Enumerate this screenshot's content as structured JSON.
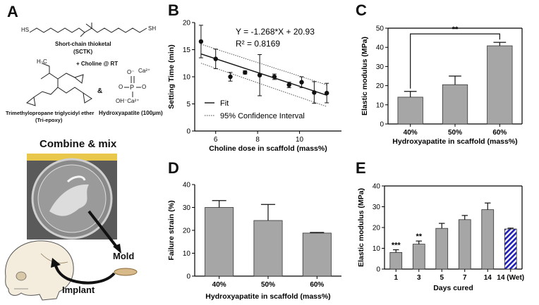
{
  "panel_a": {
    "letter": "A",
    "sctk_formula_left": "HS",
    "sctk_formula_right": "SH",
    "sctk_name": "Short-chain thioketal",
    "sctk_abbr": "(SCTK)",
    "choline_label": "+ Choline @ RT",
    "triepoxy_ch3": "H₃C",
    "triepoxy_name": "Trimethylopropane triglycidyl ether",
    "triepoxy_abbr": "(Tri-epoxy)",
    "amp": "&",
    "ha_ca_top": "Ca²⁺",
    "ha_o_left": "O⁻",
    "ha_o_right": "O",
    "ha_p": "P",
    "ha_bottom": "OH⁻Ca²⁺",
    "ha_o_bottom": "O⁻",
    "ha_name": "Hydroxyapatite (100μm)",
    "combine_label": "Combine & mix",
    "mold_label": "Mold",
    "implant_label": "Implant"
  },
  "chart_data": [
    {
      "panel": "B",
      "type": "scatter",
      "xlabel": "Choline dose in scaffold (mass%)",
      "ylabel": "Setting Time (min)",
      "xlim": [
        5,
        12
      ],
      "ylim": [
        0,
        20
      ],
      "xticks": [
        "6",
        "8",
        "10"
      ],
      "yticks": [
        "0",
        "5",
        "10",
        "15",
        "20"
      ],
      "equation": "Y = -1.268*X + 20.93",
      "r2": "R² = 0.8169",
      "legend": [
        "Fit",
        "95% Confidence Interval"
      ],
      "points": [
        {
          "x": 5.3,
          "y": 16.5,
          "err": 3.0
        },
        {
          "x": 6.0,
          "y": 13.3,
          "err": 1.8
        },
        {
          "x": 6.7,
          "y": 10.0,
          "err": 0.8
        },
        {
          "x": 7.4,
          "y": 10.8,
          "err": 0.3
        },
        {
          "x": 8.1,
          "y": 10.3,
          "err": 3.8
        },
        {
          "x": 8.8,
          "y": 10.0,
          "err": 0.5
        },
        {
          "x": 9.5,
          "y": 8.5,
          "err": 0.5
        },
        {
          "x": 10.1,
          "y": 9.0,
          "err": 1.0
        },
        {
          "x": 10.7,
          "y": 7.1,
          "err": 2.0
        },
        {
          "x": 11.3,
          "y": 7.0,
          "err": 1.8
        }
      ],
      "fit": {
        "slope": -1.268,
        "intercept": 20.93
      },
      "ci_band": {
        "upper_start": 16.0,
        "upper_end": 8.5,
        "lower_start": 12.5,
        "lower_end": 4.5
      }
    },
    {
      "panel": "C",
      "type": "bar",
      "xlabel": "Hydroxyapatite in scaffold (mass%)",
      "ylabel": "Elastic modulus (MPa)",
      "ylim": [
        0,
        50
      ],
      "yticks": [
        "0",
        "10",
        "20",
        "30",
        "40",
        "50"
      ],
      "categories": [
        "40%",
        "50%",
        "60%"
      ],
      "values": [
        14.0,
        20.5,
        40.8
      ],
      "errors": [
        3.0,
        4.5,
        1.8
      ],
      "significance": {
        "from": 0,
        "to": 2,
        "label": "**"
      }
    },
    {
      "panel": "D",
      "type": "bar",
      "xlabel": "Hydroxyapatite in scaffold (mass%)",
      "ylabel": "Failure strain (%)",
      "ylim": [
        0,
        40
      ],
      "yticks": [
        "0",
        "10",
        "20",
        "30",
        "40"
      ],
      "categories": [
        "40%",
        "50%",
        "60%"
      ],
      "values": [
        30.0,
        24.3,
        18.8
      ],
      "errors": [
        3.0,
        7.0,
        0.3
      ]
    },
    {
      "panel": "E",
      "type": "bar",
      "xlabel": "Days cured",
      "ylabel": "Elastic modulus (MPa)",
      "ylim": [
        0,
        40
      ],
      "yticks": [
        "0",
        "10",
        "20",
        "30",
        "40"
      ],
      "categories": [
        "1",
        "3",
        "5",
        "7",
        "14",
        "14 (Wet)"
      ],
      "values": [
        8.0,
        12.0,
        19.6,
        23.8,
        28.6,
        19.3
      ],
      "errors": [
        1.3,
        1.5,
        2.4,
        2.0,
        3.2,
        0.4
      ],
      "annotations": [
        "***",
        "**",
        "",
        "",
        "",
        ""
      ],
      "hatched": [
        false,
        false,
        false,
        false,
        false,
        true
      ]
    }
  ],
  "colors": {
    "bar": "#a6a6a6",
    "hatch": "#1f1fb8",
    "axis": "#000000"
  }
}
